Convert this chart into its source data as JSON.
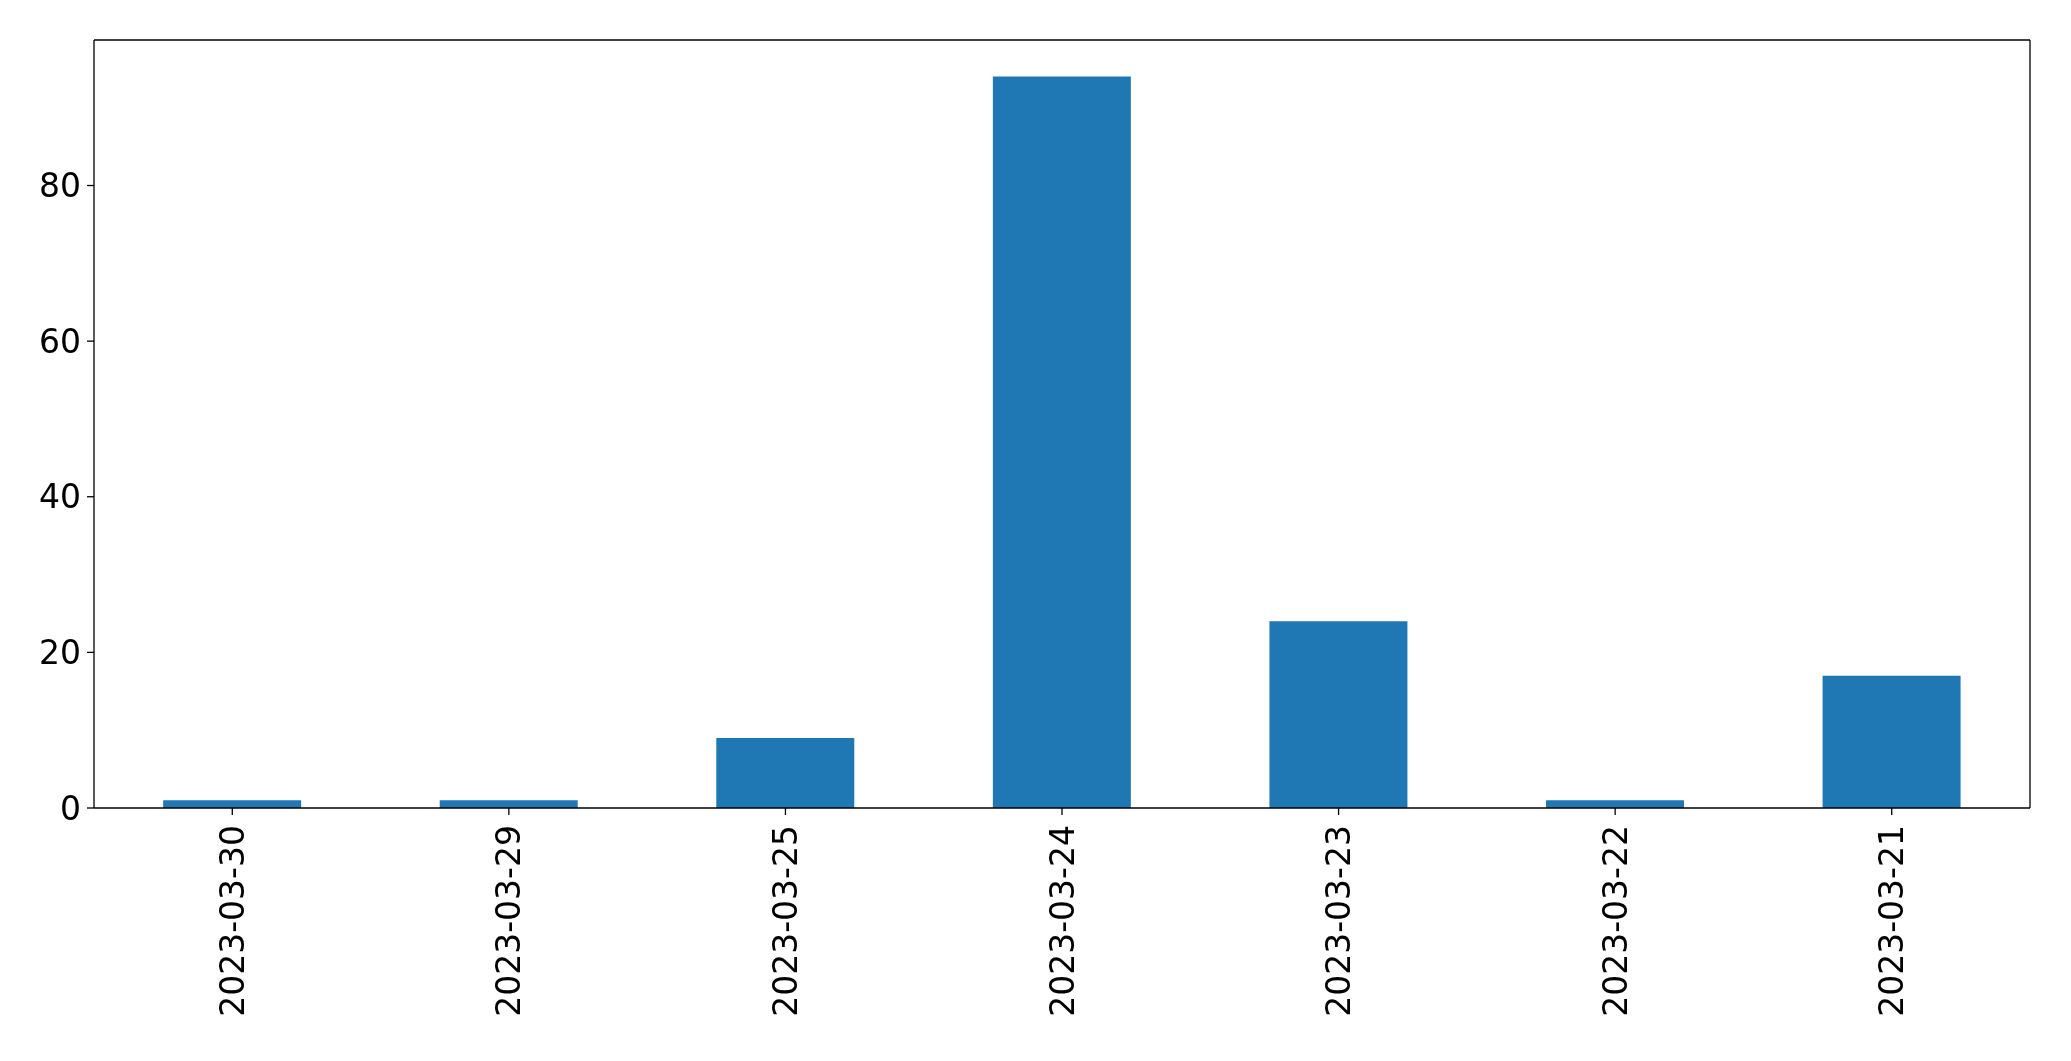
{
  "chart_data": {
    "type": "bar",
    "categories": [
      "2023-03-30",
      "2023-03-29",
      "2023-03-25",
      "2023-03-24",
      "2023-03-23",
      "2023-03-22",
      "2023-03-21"
    ],
    "values": [
      1,
      1,
      9,
      94,
      24,
      1,
      17
    ],
    "color": "#1f77b4",
    "ylim": [
      0,
      98.7
    ],
    "yticks": [
      0,
      20,
      40,
      60,
      80
    ]
  }
}
